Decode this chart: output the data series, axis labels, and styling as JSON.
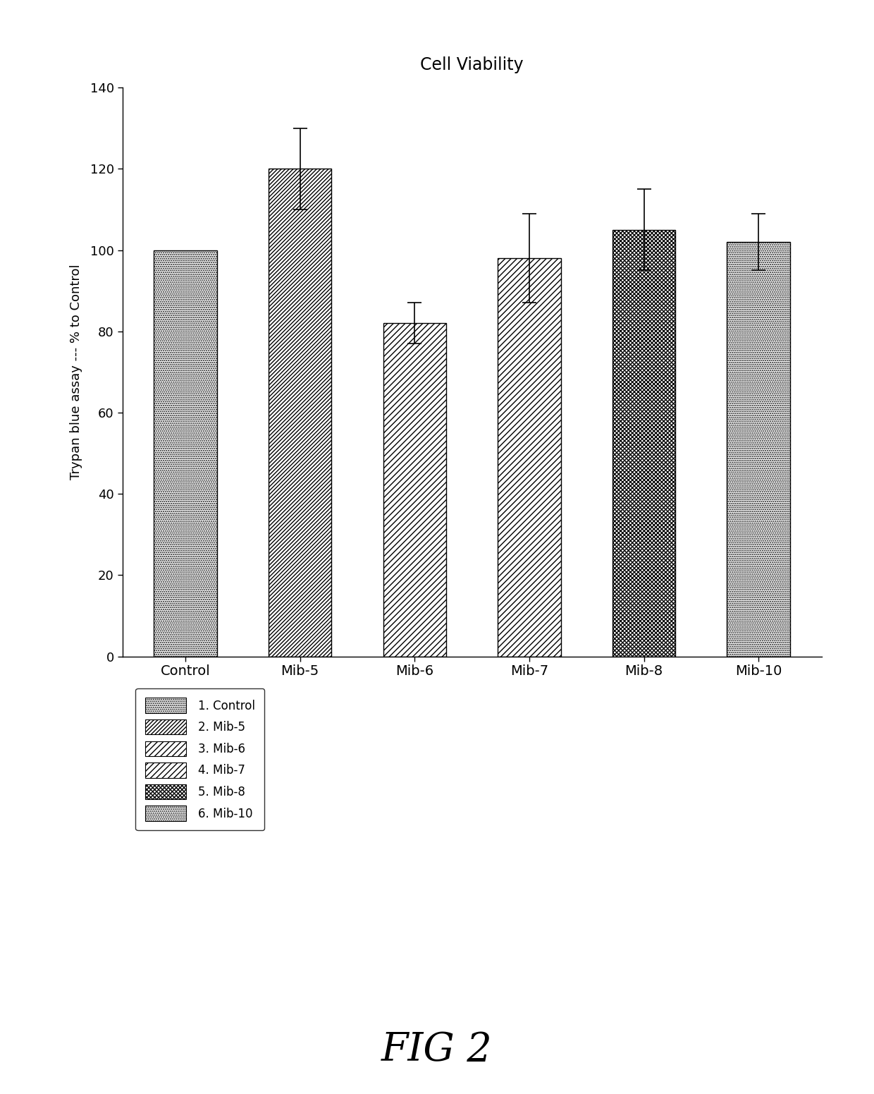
{
  "title": "Cell Viability",
  "ylabel": "Trypan blue assay --- % to Control",
  "categories": [
    "Control",
    "Mib-5",
    "Mib-6",
    "Mib-7",
    "Mib-8",
    "Mib-10"
  ],
  "values": [
    100,
    120,
    82,
    98,
    105,
    102
  ],
  "errors": [
    0,
    10,
    5,
    11,
    10,
    7
  ],
  "ylim": [
    0,
    140
  ],
  "yticks": [
    0,
    20,
    40,
    60,
    80,
    100,
    120,
    140
  ],
  "legend_labels": [
    "1. Control",
    "2. Mib-5",
    "3. Mib-6",
    "4. Mib-7",
    "5. Mib-8",
    "6. Mib-10"
  ],
  "fig_label": "FIG 2",
  "background_color": "#ffffff",
  "bar_edge_color": "#000000",
  "bar_width": 0.55,
  "hatch_patterns": [
    "....",
    "////",
    "////",
    "////",
    "xxxx",
    "o."
  ],
  "legend_hatch_patterns": [
    "....",
    "////",
    "////",
    "////",
    "xxxx",
    "o."
  ]
}
